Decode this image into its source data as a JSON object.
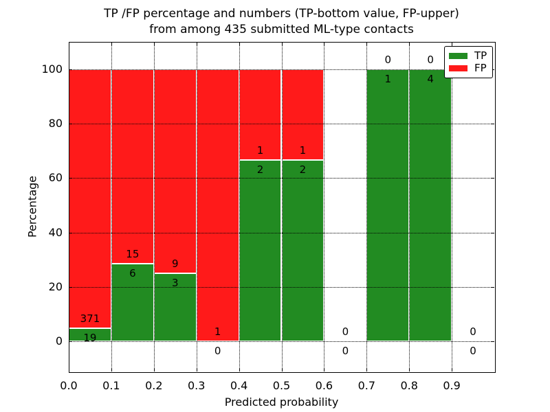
{
  "title": {
    "line1": "TP /FP percentage and numbers (TP-bottom value, FP-upper)",
    "line2": "from among 435 submitted ML-type contacts"
  },
  "axes": {
    "xlabel": "Predicted probability",
    "ylabel": "Percentage"
  },
  "legend": {
    "position": "upper-right",
    "items": [
      {
        "label": "TP",
        "color": "#228b22"
      },
      {
        "label": "FP",
        "color": "#ff1a1a"
      }
    ]
  },
  "chart_data": {
    "type": "bar",
    "variant": "stacked-percent",
    "title": "TP /FP percentage and numbers (TP-bottom value, FP-upper) from among 435 submitted ML-type contacts",
    "xlabel": "Predicted probability",
    "ylabel": "Percentage",
    "total_contacts": 435,
    "bin_width": 0.1,
    "bin_starts": [
      0.0,
      0.1,
      0.2,
      0.3,
      0.4,
      0.5,
      0.6,
      0.7,
      0.8,
      0.9
    ],
    "series": [
      {
        "name": "TP",
        "color": "#228b22",
        "counts": [
          19,
          6,
          3,
          0,
          2,
          2,
          0,
          1,
          4,
          0
        ]
      },
      {
        "name": "FP",
        "color": "#ff1a1a",
        "counts": [
          371,
          15,
          9,
          1,
          1,
          1,
          0,
          0,
          0,
          0
        ]
      }
    ],
    "tp_percent_by_bin": [
      4.87,
      28.57,
      25.0,
      0.0,
      66.67,
      66.67,
      null,
      100.0,
      100.0,
      null
    ],
    "annotation_rule": "FP count printed above TP/FP boundary, TP count printed below it",
    "xticks": [
      0.0,
      0.1,
      0.2,
      0.3,
      0.4,
      0.5,
      0.6,
      0.7,
      0.8,
      0.9
    ],
    "xtick_labels": [
      "0.0",
      "0.1",
      "0.2",
      "0.3",
      "0.4",
      "0.5",
      "0.6",
      "0.7",
      "0.8",
      "0.9"
    ],
    "yticks": [
      0,
      20,
      40,
      60,
      80,
      100
    ],
    "ytick_labels": [
      "0",
      "20",
      "40",
      "60",
      "80",
      "100"
    ],
    "xlim": [
      0.0,
      1.0
    ],
    "ylim": [
      -11,
      110
    ],
    "grid": "dotted-black-both-axes",
    "bar_edge_color": "#ffffff",
    "legend_position": "upper right"
  }
}
